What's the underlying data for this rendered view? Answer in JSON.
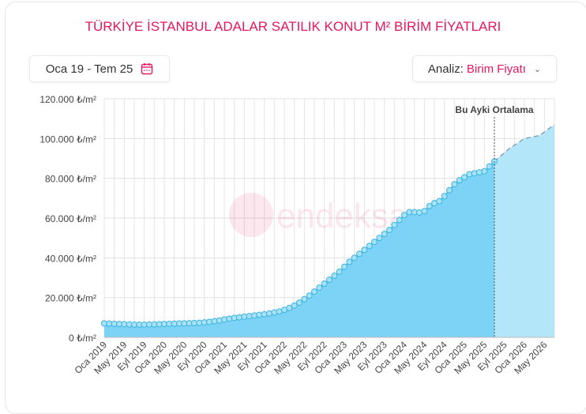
{
  "title": "TÜRKİYE İSTANBUL ADALAR SATILIK KONUT M² BİRİM FİYATLARI",
  "date_range": {
    "label": "Oca 19 - Tem 25",
    "icon": "calendar-icon"
  },
  "analysis": {
    "prefix": "Analiz:",
    "value": "Birim Fiyatı",
    "icon": "chevron-down-icon"
  },
  "colors": {
    "accent": "#e5175f",
    "area": "#7dd3f5",
    "forecast_area": "#b3e6f8",
    "line": "#3bb4e0"
  },
  "chart_data": {
    "type": "area",
    "ylim": [
      0,
      120000
    ],
    "y_ticks": [
      "0 ₺/m²",
      "20.000 ₺/m²",
      "40.000 ₺/m²",
      "60.000 ₺/m²",
      "80.000 ₺/m²",
      "100.000 ₺/m²",
      "120.000 ₺/m²"
    ],
    "x_ticks": [
      "Oca 2019",
      "May 2019",
      "Eyl 2019",
      "Oca 2020",
      "May 2020",
      "Eyl 2020",
      "Oca 2021",
      "May 2021",
      "Eyl 2021",
      "Oca 2022",
      "May 2022",
      "Eyl 2022",
      "Oca 2023",
      "May 2023",
      "Eyl 2023",
      "Oca 2024",
      "May 2024",
      "Eyl 2024",
      "Oca 2025",
      "May 2025",
      "Eyl 2025",
      "Oca 2026",
      "May 2026"
    ],
    "grid": true,
    "annotation": "Bu Ayki Ortalama",
    "series": [
      {
        "start": "2019-01",
        "values": [
          7000,
          6900,
          6800,
          6700,
          6600,
          6500,
          6400,
          6400,
          6400,
          6500,
          6500,
          6600,
          6700,
          6800,
          6900,
          7000,
          7000,
          7100,
          7200,
          7300,
          7500,
          7800,
          8100,
          8500,
          9000,
          9400,
          9800,
          10100,
          10400,
          10700,
          11000,
          11300,
          11600,
          12000,
          12500,
          13000,
          13800,
          14800,
          16000,
          17500,
          19200,
          21000,
          23000,
          25000,
          27000,
          29000,
          31000,
          33000,
          35500,
          38000,
          40000,
          42000,
          44000,
          46000,
          48000,
          50000,
          52000,
          54000,
          56500,
          59000,
          61500,
          63000,
          63000,
          62800,
          63500,
          66000,
          67500,
          68500,
          71000,
          74000,
          77000,
          79000,
          80500,
          82000,
          82500,
          83000,
          83500,
          86000,
          88500
        ]
      }
    ],
    "forecast": [
      {
        "month": "2025-07",
        "value": 88500
      },
      {
        "month": "2025-10",
        "value": 95000
      },
      {
        "month": "2026-01",
        "value": 100000
      },
      {
        "month": "2026-04",
        "value": 101500
      },
      {
        "month": "2026-07",
        "value": 107000
      }
    ],
    "watermark": "endeksa"
  }
}
